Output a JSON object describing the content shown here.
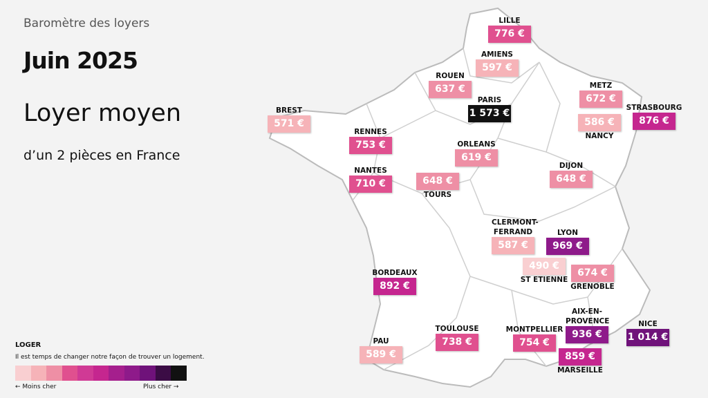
{
  "header": {
    "kicker": "Baromètre des loyers",
    "title": "Juin 2025",
    "heading": "Loyer moyen",
    "subheading": "d’un 2 pièces en France"
  },
  "cities": [
    {
      "name": "LILLE",
      "price": "776 €",
      "color": "#e0508f"
    },
    {
      "name": "AMIENS",
      "price": "597 €",
      "color": "#f6b3b8"
    },
    {
      "name": "ROUEN",
      "price": "637 €",
      "color": "#ee8fa5"
    },
    {
      "name": "PARIS",
      "price": "1 573 €",
      "color": "#111111"
    },
    {
      "name": "BREST",
      "price": "571 €",
      "color": "#f6b3b8"
    },
    {
      "name": "RENNES",
      "price": "753 €",
      "color": "#e0508f"
    },
    {
      "name": "ORLEANS",
      "price": "619 €",
      "color": "#ee8fa5"
    },
    {
      "name": "NANTES",
      "price": "710 €",
      "color": "#e0508f"
    },
    {
      "name": "TOURS",
      "price": "648 €",
      "color": "#ee8fa5"
    },
    {
      "name": "METZ",
      "price": "672 €",
      "color": "#ee8fa5"
    },
    {
      "name": "STRASBOURG",
      "price": "876 €",
      "color": "#c5268f"
    },
    {
      "name": "NANCY",
      "price": "586 €",
      "color": "#f6b3b8"
    },
    {
      "name": "DIJON",
      "price": "648 €",
      "color": "#ee8fa5"
    },
    {
      "name": "CLERMONT-FERRAND",
      "price": "587 €",
      "color": "#f6b3b8"
    },
    {
      "name": "LYON",
      "price": "969 €",
      "color": "#8e1a8a"
    },
    {
      "name": "ST ETIENNE",
      "price": "490 €",
      "color": "#f9cfd1"
    },
    {
      "name": "GRENOBLE",
      "price": "674 €",
      "color": "#ee8fa5"
    },
    {
      "name": "BORDEAUX",
      "price": "892 €",
      "color": "#c5268f"
    },
    {
      "name": "AIX-EN-PROVENCE",
      "price": "936 €",
      "color": "#8e1a8a"
    },
    {
      "name": "NICE",
      "price": "1 014 €",
      "color": "#6f127a"
    },
    {
      "name": "TOULOUSE",
      "price": "738 €",
      "color": "#e0508f"
    },
    {
      "name": "MONTPELLIER",
      "price": "754 €",
      "color": "#e0508f"
    },
    {
      "name": "PAU",
      "price": "589 €",
      "color": "#f6b3b8"
    },
    {
      "name": "MARSEILLE",
      "price": "859 €",
      "color": "#c5268f"
    }
  ],
  "brand": {
    "logo": "LOGER",
    "tagline": "Il est temps de changer notre façon de trouver un logement."
  },
  "legend": {
    "colors": [
      "#f9cfd1",
      "#f6b3b8",
      "#ee8fa5",
      "#e0508f",
      "#d03a95",
      "#c5268f",
      "#a51f8d",
      "#8e1a8a",
      "#6f127a",
      "#3b0c45",
      "#111111"
    ],
    "low": "← Moins cher",
    "high": "Plus cher →"
  }
}
